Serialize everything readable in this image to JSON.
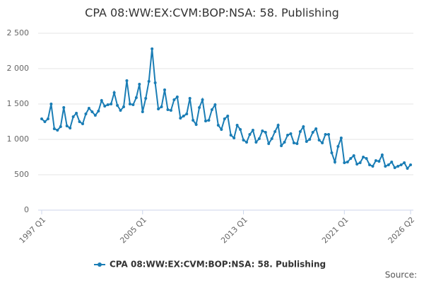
{
  "chart_data": {
    "type": "line",
    "title": "CPA 08:WW:EX:CVM:BOP:NSA: 58. Publishing",
    "source": "Source:",
    "categories": [
      "1997 Q1",
      null,
      null,
      null,
      null,
      null,
      null,
      null,
      null,
      null,
      null,
      null,
      null,
      null,
      null,
      null,
      null,
      null,
      null,
      null,
      null,
      null,
      null,
      null,
      null,
      null,
      null,
      null,
      null,
      null,
      null,
      null,
      "2005 Q1",
      null,
      null,
      null,
      null,
      null,
      null,
      null,
      null,
      null,
      null,
      null,
      null,
      null,
      null,
      null,
      null,
      null,
      null,
      null,
      null,
      null,
      null,
      null,
      null,
      null,
      null,
      null,
      null,
      null,
      null,
      null,
      "2013 Q1",
      null,
      null,
      null,
      null,
      null,
      null,
      null,
      null,
      null,
      null,
      null,
      null,
      null,
      null,
      null,
      null,
      null,
      null,
      null,
      null,
      null,
      null,
      null,
      null,
      null,
      null,
      null,
      null,
      null,
      null,
      null,
      "2021 Q1",
      null,
      null,
      null,
      null,
      null,
      null,
      null,
      null,
      null,
      null,
      null,
      null,
      null,
      null,
      null,
      null,
      null,
      null,
      null,
      null,
      "2026 Q2"
    ],
    "series": [
      {
        "name": "CPA 08:WW:EX:CVM:BOP:NSA: 58. Publishing",
        "color": "#1a7db5",
        "values": [
          1290,
          1250,
          1290,
          1500,
          1150,
          1130,
          1180,
          1450,
          1190,
          1160,
          1320,
          1370,
          1250,
          1220,
          1360,
          1440,
          1390,
          1340,
          1400,
          1550,
          1470,
          1490,
          1500,
          1660,
          1480,
          1410,
          1460,
          1830,
          1500,
          1490,
          1590,
          1780,
          1390,
          1580,
          1820,
          2280,
          1800,
          1430,
          1460,
          1700,
          1420,
          1410,
          1560,
          1600,
          1300,
          1330,
          1360,
          1580,
          1270,
          1210,
          1450,
          1560,
          1260,
          1270,
          1420,
          1490,
          1200,
          1140,
          1290,
          1330,
          1060,
          1020,
          1200,
          1140,
          990,
          960,
          1070,
          1130,
          960,
          1010,
          1120,
          1100,
          940,
          1010,
          1110,
          1200,
          910,
          960,
          1060,
          1080,
          950,
          940,
          1110,
          1180,
          970,
          1000,
          1100,
          1150,
          990,
          950,
          1070,
          1070,
          810,
          680,
          900,
          1020,
          670,
          680,
          730,
          770,
          650,
          670,
          750,
          730,
          640,
          620,
          700,
          690,
          780,
          620,
          640,
          680,
          600,
          620,
          640,
          670,
          590,
          640
        ]
      }
    ],
    "ylim": [
      0,
      2500
    ],
    "yticks": [
      0,
      500,
      {
        "value": 1000,
        "label": "1 000"
      },
      {
        "value": 1500,
        "label": "1 500"
      },
      {
        "value": 2000,
        "label": "2 000"
      },
      {
        "value": 2500,
        "label": "2 500"
      }
    ],
    "grid": true
  }
}
